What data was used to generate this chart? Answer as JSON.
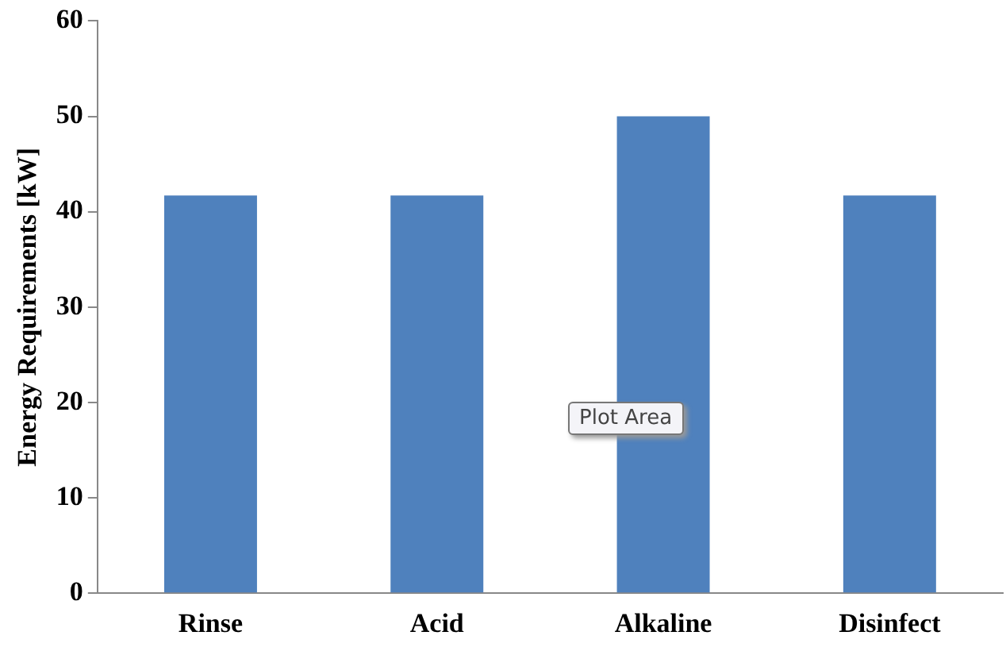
{
  "chart_data": {
    "type": "bar",
    "ylabel": "Energy Requirements [kW]",
    "categories": [
      "Rinse",
      "Acid",
      "Alkaline",
      "Disinfect"
    ],
    "values": [
      41.7,
      41.7,
      50,
      41.7
    ],
    "color": "#4f81bd",
    "ylim": [
      0,
      60
    ],
    "yticks": [
      0,
      10,
      20,
      30,
      40,
      50,
      60
    ],
    "grid": false,
    "legend": false,
    "annotations": [
      "Plot Area"
    ]
  }
}
